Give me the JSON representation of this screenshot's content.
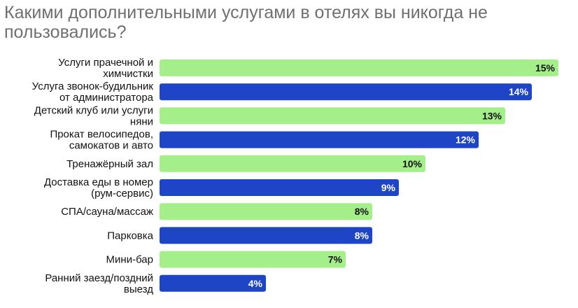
{
  "chart_data": {
    "type": "bar",
    "orientation": "horizontal",
    "title": "Какими дополнительными услугами в отелях вы никогда не пользовались?",
    "categories": [
      [
        "Услуги прачечной и",
        "химчистки"
      ],
      [
        "Услуга звонок-будильник",
        "от администратора"
      ],
      [
        "Детский клуб или услуги",
        "няни"
      ],
      [
        "Прокат велосипедов,",
        "самокатов и авто"
      ],
      [
        "Тренажёрный зал"
      ],
      [
        "Доставка еды в номер",
        "(рум-сервис)"
      ],
      [
        "СПА/сауна/массаж"
      ],
      [
        "Парковка"
      ],
      [
        "Мини-бар"
      ],
      [
        "Ранний заезд/поздний",
        "выезд"
      ]
    ],
    "values": [
      15,
      14,
      13,
      12,
      10,
      9,
      8,
      8,
      7,
      4
    ],
    "value_labels": [
      "15%",
      "14%",
      "13%",
      "12%",
      "10%",
      "9%",
      "8%",
      "8%",
      "7%",
      "4%"
    ],
    "unit": "%",
    "xlim": [
      0,
      15
    ],
    "grid": false,
    "legend": "none",
    "colors": {
      "light": "#a4ef8a",
      "dark": "#1d45c6",
      "light_text": "#111111",
      "dark_text": "#ffffff"
    }
  }
}
